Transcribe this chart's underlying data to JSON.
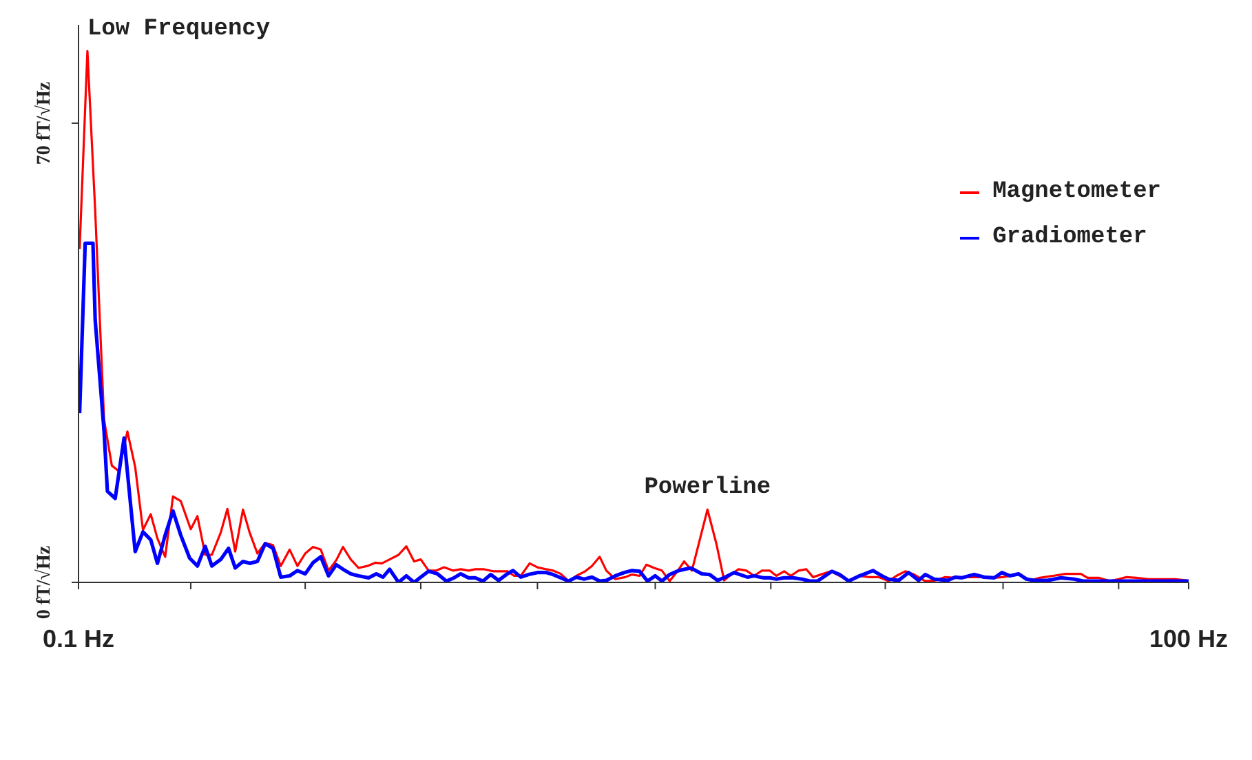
{
  "chart_data": {
    "type": "line",
    "xlim": [
      0.1,
      100
    ],
    "xticks": [
      {
        "value": 0.1,
        "label": "0.1 Hz"
      },
      {
        "value": 10.2,
        "label": null
      },
      {
        "value": 20.5,
        "label": null
      },
      {
        "value": 30.9,
        "label": null
      },
      {
        "value": 41.4,
        "label": null
      },
      {
        "value": 52.0,
        "label": null
      },
      {
        "value": 62.4,
        "label": null
      },
      {
        "value": 72.7,
        "label": null
      },
      {
        "value": 83.3,
        "label": null
      },
      {
        "value": 93.7,
        "label": null
      },
      {
        "value": 100,
        "label": "100 Hz"
      }
    ],
    "ylim": [
      0,
      85
    ],
    "yticks": [
      {
        "value": 0,
        "label": "0 fT/√Hz"
      },
      {
        "value": 70,
        "label": "70 fT/√Hz"
      }
    ],
    "legend": "top right",
    "annotations": [
      {
        "text": "Low Frequency",
        "x": 0.9,
        "y": 81
      },
      {
        "text": "Powerline",
        "x": 56.7,
        "y": 11.1
      }
    ],
    "series": [
      {
        "name": "Magnetometer",
        "color": "#ff0000",
        "x": [
          0.2,
          0.9,
          1.6,
          2.4,
          3.1,
          3.7,
          4.5,
          5.2,
          5.9,
          6.6,
          7.2,
          7.9,
          8.6,
          9.3,
          10.2,
          10.8,
          11.5,
          12.1,
          12.9,
          13.5,
          14.2,
          14.9,
          15.5,
          16.2,
          16.9,
          17.6,
          18.3,
          19.1,
          19.8,
          20.5,
          21.2,
          21.9,
          22.6,
          23.3,
          23.9,
          24.6,
          25.3,
          26.1,
          26.8,
          27.4,
          28.1,
          28.9,
          29.6,
          30.3,
          30.9,
          31.6,
          32.3,
          33.0,
          33.8,
          34.5,
          35.2,
          35.8,
          36.6,
          37.4,
          38.7,
          39.3,
          39.9,
          40.7,
          41.4,
          42.2,
          42.8,
          43.5,
          44.2,
          44.9,
          45.7,
          46.3,
          47.0,
          47.6,
          48.4,
          49.3,
          49.9,
          50.6,
          51.2,
          51.9,
          52.6,
          53.3,
          54.0,
          54.6,
          55.3,
          56.7,
          57.5,
          58.2,
          58.9,
          59.5,
          60.2,
          60.9,
          61.6,
          62.3,
          62.9,
          63.6,
          64.2,
          64.9,
          65.6,
          66.2,
          67.8,
          68.6,
          69.4,
          70.3,
          71.3,
          72.1,
          73.0,
          73.7,
          74.5,
          75.3,
          76.3,
          77.2,
          78.1,
          79.0,
          80.2,
          81.3,
          82.5,
          83.2,
          84.0,
          84.8,
          85.8,
          86.6,
          87.8,
          88.9,
          90.3,
          90.9,
          91.9,
          92.9,
          93.7,
          94.4,
          95.3,
          96.4,
          97.6,
          98.8,
          99.8
        ],
        "values": [
          50.8,
          81,
          56.7,
          24.8,
          17.8,
          17,
          23,
          17.6,
          8,
          10.4,
          6.7,
          3.9,
          13.1,
          12.4,
          8.1,
          10.1,
          4.2,
          4.2,
          7.6,
          11.2,
          4.7,
          11.1,
          7.6,
          4.4,
          6,
          5.7,
          2.5,
          5,
          2.5,
          4.4,
          5.4,
          5,
          1.8,
          3.4,
          5.4,
          3.5,
          2.2,
          2.5,
          3,
          2.9,
          3.5,
          4.2,
          5.5,
          3.2,
          3.5,
          1.8,
          1.8,
          2.3,
          1.8,
          2,
          1.8,
          2,
          2,
          1.7,
          1.7,
          1,
          1,
          2.9,
          2.3,
          2,
          1.8,
          1.3,
          0.2,
          1,
          1.7,
          2.5,
          3.9,
          1.8,
          0.5,
          0.8,
          1.2,
          1,
          2.7,
          2.2,
          1.8,
          0.2,
          1.7,
          3.2,
          1.8,
          11.1,
          5.9,
          0.3,
          1.3,
          2,
          1.8,
          1,
          1.8,
          1.8,
          1,
          1.7,
          1,
          1.8,
          2,
          0.8,
          1.7,
          1,
          0.3,
          1,
          0.8,
          0.8,
          0.2,
          1,
          1.7,
          1.2,
          0.2,
          0.3,
          0.8,
          0.7,
          0.8,
          0.8,
          0.7,
          0.8,
          1,
          1.2,
          0.3,
          0.7,
          1,
          1.3,
          1.3,
          0.7,
          0.7,
          0.2,
          0.5,
          0.8,
          0.7,
          0.5,
          0.5,
          0.5,
          0.3
        ]
      },
      {
        "name": "Gradiometer",
        "color": "#0000ff",
        "x": [
          0.2,
          0.7,
          1.4,
          1.6,
          2.1,
          2.4,
          2.7,
          3.4,
          4.2,
          5.2,
          5.9,
          6.6,
          7.2,
          7.9,
          8.6,
          9.3,
          10.1,
          10.8,
          11.5,
          12.1,
          12.9,
          13.6,
          14.2,
          14.9,
          15.5,
          16.2,
          16.9,
          17.6,
          18.3,
          19.1,
          19.8,
          20.5,
          21.2,
          21.9,
          22.6,
          23.3,
          23.9,
          24.6,
          25.3,
          26.2,
          26.9,
          27.5,
          28.1,
          28.9,
          29.6,
          30.3,
          30.9,
          31.6,
          32.4,
          33.2,
          33.9,
          34.5,
          35.2,
          35.8,
          36.5,
          37.2,
          37.9,
          38.6,
          39.2,
          39.9,
          40.6,
          41.4,
          42.2,
          42.8,
          43.5,
          44.2,
          44.9,
          45.6,
          46.3,
          47.0,
          47.6,
          48.4,
          49.2,
          49.9,
          50.6,
          51.3,
          52.0,
          52.6,
          53.3,
          54.1,
          55.2,
          56.2,
          56.9,
          57.6,
          58.3,
          59.1,
          60.3,
          60.9,
          61.7,
          62.3,
          62.9,
          63.6,
          64.4,
          65.2,
          65.9,
          66.6,
          67.9,
          68.6,
          69.4,
          70.4,
          71.6,
          72.4,
          73.0,
          73.9,
          74.8,
          75.7,
          76.3,
          77.1,
          78.3,
          79.0,
          79.6,
          80.7,
          81.6,
          82.5,
          83.2,
          83.9,
          84.7,
          85.4,
          86.1,
          87.3,
          88.5,
          89.7,
          90.5,
          92.1,
          94.4,
          96.8,
          99.2,
          100
        ],
        "values": [
          25.8,
          51.7,
          51.7,
          40,
          29.4,
          23,
          13.9,
          12.8,
          22,
          4.7,
          7.7,
          6.5,
          2.9,
          7.2,
          10.9,
          7.2,
          3.7,
          2.5,
          5.5,
          2.5,
          3.5,
          5.2,
          2.2,
          3.2,
          2.9,
          3.2,
          5.9,
          5.2,
          0.8,
          1,
          1.8,
          1.3,
          3,
          3.9,
          1,
          2.7,
          2,
          1.3,
          1,
          0.7,
          1.3,
          0.8,
          2,
          0,
          1,
          0,
          0.8,
          1.7,
          1.3,
          0.2,
          0.7,
          1.3,
          0.7,
          0.7,
          0.2,
          1.2,
          0.3,
          1.2,
          1.8,
          0.8,
          1.2,
          1.5,
          1.5,
          1.2,
          0.7,
          0.2,
          0.8,
          0.5,
          0.8,
          0.2,
          0.3,
          1,
          1.5,
          1.8,
          1.7,
          0.2,
          1,
          0.2,
          1.2,
          1.8,
          2.2,
          1.3,
          1.2,
          0.3,
          0.8,
          1.5,
          0.8,
          1,
          0.7,
          0.7,
          0.5,
          0.7,
          0.7,
          0.5,
          0.2,
          0.2,
          1.7,
          1.2,
          0.2,
          1,
          1.8,
          1,
          0.5,
          0.3,
          1.5,
          0.3,
          1.2,
          0.5,
          0.3,
          0.8,
          0.7,
          1.2,
          0.8,
          0.7,
          1.5,
          1,
          1.3,
          0.5,
          0.3,
          0.3,
          0.7,
          0.5,
          0.2,
          0.2,
          0.2,
          0.2,
          0.2,
          0.2
        ]
      }
    ]
  }
}
